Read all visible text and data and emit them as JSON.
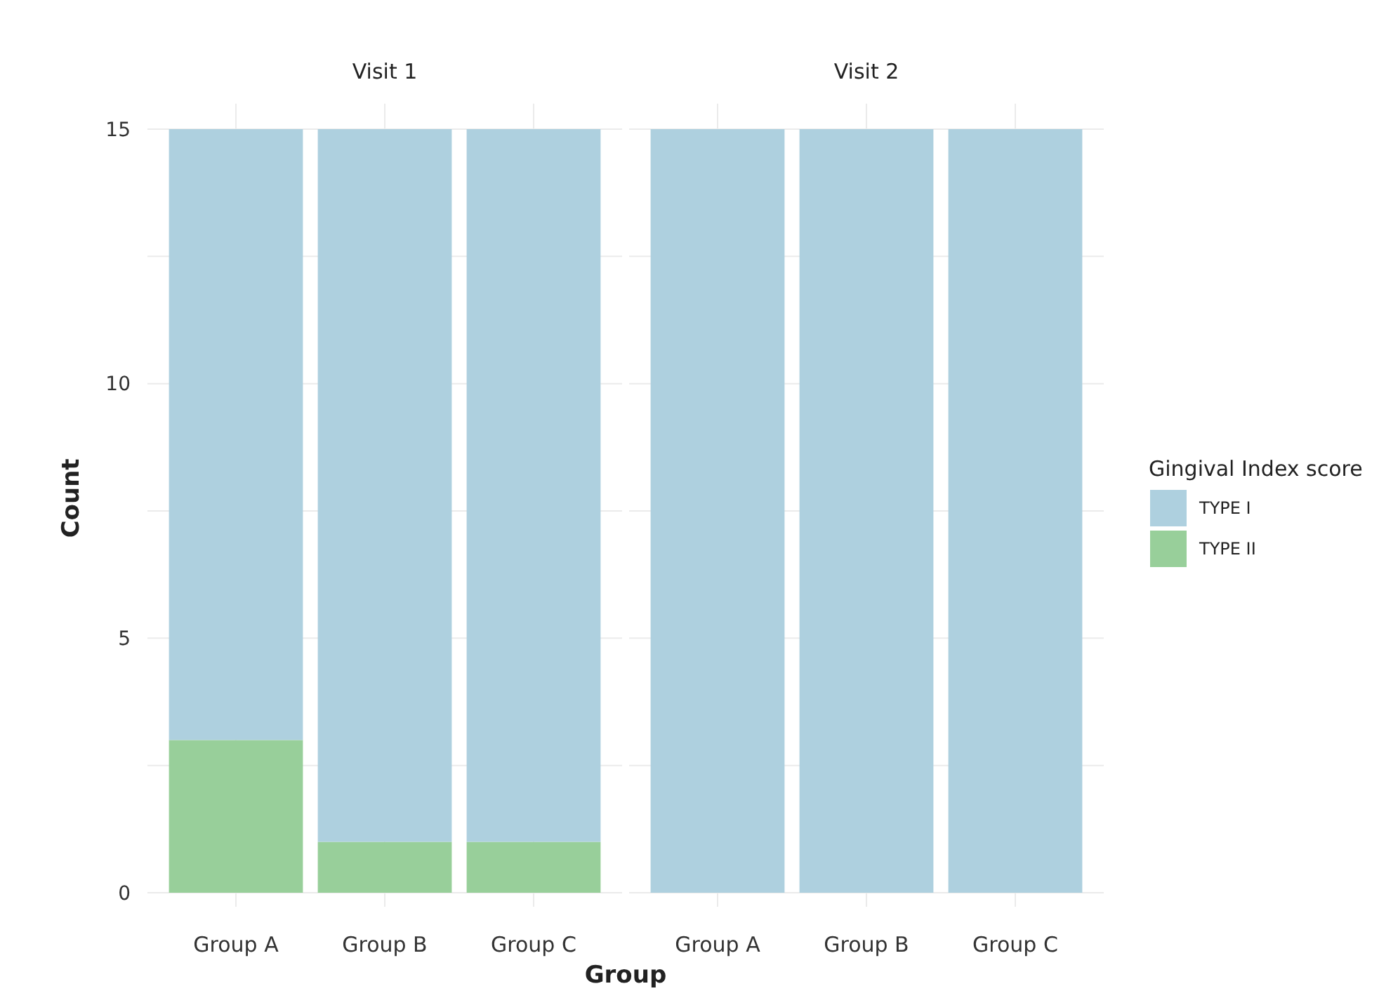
{
  "chart_data": [
    {
      "type": "bar",
      "title": "Visit 1",
      "xlabel": "Group",
      "ylabel": "Count",
      "categories": [
        "Group A",
        "Group B",
        "Group C"
      ],
      "stacked": true,
      "series": [
        {
          "name": "TYPE II",
          "color": "#98cf9a",
          "values": [
            3,
            1,
            1
          ]
        },
        {
          "name": "TYPE I",
          "color": "#aed0df",
          "values": [
            12,
            14,
            14
          ]
        }
      ],
      "ylim": [
        0,
        15.5
      ],
      "yticks": [
        0,
        {
          "value": 2.5,
          "label": null
        },
        5,
        {
          "value": 7.5,
          "label": null
        },
        10,
        {
          "value": 12.5,
          "label": null
        },
        15
      ],
      "grid": true,
      "legend": "right",
      "legend_title": "Gingival Index score"
    },
    {
      "type": "bar",
      "title": "Visit 2",
      "categories": [
        "Group A",
        "Group B",
        "Group C"
      ],
      "stacked": true,
      "series": [
        {
          "color": "#98cf9a",
          "values": [
            0,
            0,
            0
          ]
        },
        {
          "color": "#aed0df",
          "values": [
            15,
            15,
            15
          ]
        }
      ],
      "ylim": [
        0,
        15.5
      ],
      "yticks": [
        0,
        {
          "value": 2.5,
          "label": null
        },
        5,
        {
          "value": 7.5,
          "label": null
        },
        10,
        {
          "value": 12.5,
          "label": null
        },
        15
      ],
      "grid": true,
      "tick_labels": "x"
    }
  ]
}
